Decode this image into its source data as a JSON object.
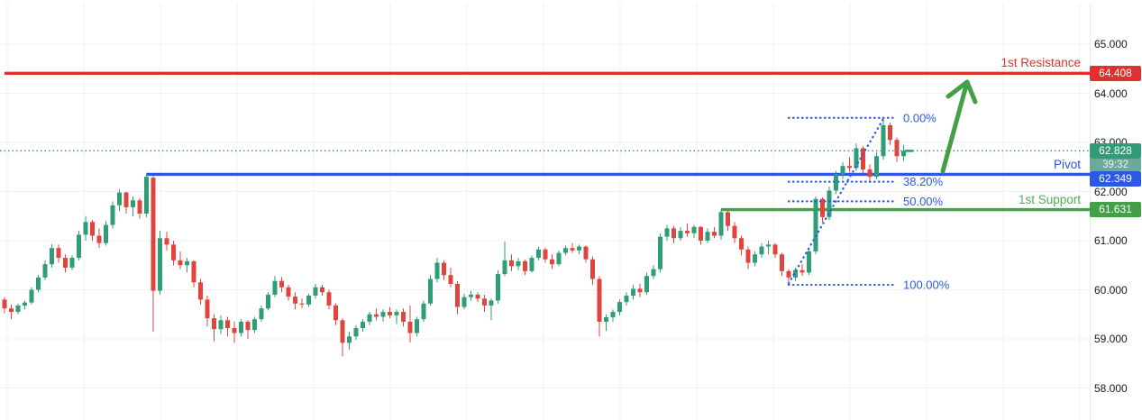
{
  "chart_data": {
    "type": "candlestick",
    "y_axis": {
      "min": 58,
      "max": 65,
      "tick_step": 1,
      "tick_labels": [
        "65.000",
        "64.000",
        "63.000",
        "62.000",
        "61.000",
        "60.000",
        "59.000",
        "58.000"
      ],
      "grid": true
    },
    "levels": [
      {
        "name": "1st Resistance",
        "price": 64.408,
        "value_label": "64.408",
        "color": "#e0312e",
        "start_index": 0
      },
      {
        "name": "Pivot",
        "price": 62.349,
        "value_label": "62.349",
        "color": "#2c59e4",
        "start_index": 21
      },
      {
        "name": "1st Support",
        "price": 61.631,
        "value_label": "61.631",
        "color": "#43a047",
        "start_index": 106
      }
    ],
    "current_price": {
      "value": "62.828",
      "price": 62.828,
      "countdown": "39:32",
      "color": "#2f9e77"
    },
    "fib_retracement": {
      "color": "#2c59e4",
      "levels": [
        {
          "label": "0.00%",
          "price": 63.5
        },
        {
          "label": "38.20%",
          "price": 62.2
        },
        {
          "label": "50.00%",
          "price": 61.8
        },
        {
          "label": "100.00%",
          "price": 60.1
        }
      ],
      "anchor_low": {
        "index": 116,
        "price": 60.13
      },
      "anchor_high": {
        "index": 130,
        "price": 63.48
      }
    },
    "arrow_annotation": {
      "tail": [
        1046,
        190
      ],
      "tip": [
        1073,
        91
      ],
      "color": "#43a047"
    },
    "candles": [
      [
        59.8,
        59.85,
        59.52,
        59.62
      ],
      [
        59.62,
        59.7,
        59.4,
        59.55
      ],
      [
        59.55,
        59.72,
        59.5,
        59.68
      ],
      [
        59.68,
        59.78,
        59.6,
        59.74
      ],
      [
        59.74,
        60.05,
        59.7,
        60.0
      ],
      [
        60.0,
        60.3,
        59.95,
        60.25
      ],
      [
        60.25,
        60.6,
        60.2,
        60.52
      ],
      [
        60.52,
        60.93,
        60.45,
        60.85
      ],
      [
        60.85,
        60.92,
        60.55,
        60.65
      ],
      [
        60.65,
        60.72,
        60.35,
        60.45
      ],
      [
        60.45,
        60.7,
        60.4,
        60.65
      ],
      [
        60.65,
        61.2,
        60.6,
        61.12
      ],
      [
        61.12,
        61.5,
        61.0,
        61.38
      ],
      [
        61.38,
        61.42,
        61.0,
        61.1
      ],
      [
        61.1,
        61.25,
        60.85,
        60.95
      ],
      [
        60.95,
        61.4,
        60.9,
        61.32
      ],
      [
        61.32,
        61.8,
        61.25,
        61.72
      ],
      [
        61.72,
        62.05,
        61.6,
        61.98
      ],
      [
        61.98,
        62.0,
        61.55,
        61.68
      ],
      [
        61.68,
        61.9,
        61.5,
        61.82
      ],
      [
        61.82,
        61.87,
        61.45,
        61.55
      ],
      [
        61.55,
        62.36,
        61.48,
        62.3
      ],
      [
        62.28,
        62.33,
        59.15,
        59.98
      ],
      [
        59.98,
        61.2,
        59.9,
        61.05
      ],
      [
        61.05,
        61.18,
        60.8,
        60.92
      ],
      [
        60.92,
        61.0,
        60.5,
        60.6
      ],
      [
        60.6,
        60.78,
        60.42,
        60.5
      ],
      [
        60.5,
        60.65,
        60.35,
        60.58
      ],
      [
        60.58,
        60.6,
        60.05,
        60.15
      ],
      [
        60.15,
        60.22,
        59.7,
        59.8
      ],
      [
        59.8,
        59.88,
        59.25,
        59.42
      ],
      [
        59.42,
        59.5,
        58.95,
        59.2
      ],
      [
        59.2,
        59.48,
        59.1,
        59.38
      ],
      [
        59.38,
        59.45,
        59.05,
        59.22
      ],
      [
        59.22,
        59.35,
        58.92,
        59.12
      ],
      [
        59.12,
        59.4,
        59.05,
        59.35
      ],
      [
        59.35,
        59.38,
        59.0,
        59.18
      ],
      [
        59.18,
        59.45,
        59.12,
        59.4
      ],
      [
        59.4,
        59.68,
        59.35,
        59.62
      ],
      [
        59.62,
        59.95,
        59.58,
        59.9
      ],
      [
        59.9,
        60.28,
        59.85,
        60.18
      ],
      [
        60.18,
        60.26,
        59.95,
        60.05
      ],
      [
        60.05,
        60.1,
        59.78,
        59.86
      ],
      [
        59.86,
        59.95,
        59.6,
        59.72
      ],
      [
        59.72,
        59.82,
        59.62,
        59.7
      ],
      [
        59.7,
        59.92,
        59.65,
        59.88
      ],
      [
        59.88,
        60.12,
        59.82,
        60.05
      ],
      [
        60.05,
        60.1,
        59.88,
        59.95
      ],
      [
        59.95,
        60.0,
        59.6,
        59.68
      ],
      [
        59.68,
        59.72,
        59.28,
        59.38
      ],
      [
        59.38,
        59.42,
        58.65,
        58.92
      ],
      [
        58.92,
        59.15,
        58.78,
        59.05
      ],
      [
        59.05,
        59.28,
        58.98,
        59.22
      ],
      [
        59.22,
        59.4,
        59.15,
        59.35
      ],
      [
        59.35,
        59.55,
        59.28,
        59.5
      ],
      [
        59.5,
        59.62,
        59.38,
        59.45
      ],
      [
        59.45,
        59.6,
        59.35,
        59.55
      ],
      [
        59.55,
        59.65,
        59.42,
        59.48
      ],
      [
        59.48,
        59.6,
        59.3,
        59.55
      ],
      [
        59.55,
        59.62,
        59.25,
        59.35
      ],
      [
        59.35,
        59.68,
        58.93,
        59.12
      ],
      [
        59.12,
        59.45,
        59.05,
        59.4
      ],
      [
        59.4,
        59.78,
        59.35,
        59.72
      ],
      [
        59.72,
        60.3,
        59.68,
        60.22
      ],
      [
        60.22,
        60.65,
        60.15,
        60.55
      ],
      [
        60.55,
        60.6,
        60.2,
        60.3
      ],
      [
        60.3,
        60.45,
        60.05,
        60.12
      ],
      [
        60.12,
        60.18,
        59.5,
        59.65
      ],
      [
        59.65,
        59.92,
        59.6,
        59.85
      ],
      [
        59.85,
        59.98,
        59.78,
        59.9
      ],
      [
        59.9,
        59.95,
        59.75,
        59.82
      ],
      [
        59.82,
        59.9,
        59.55,
        59.68
      ],
      [
        59.68,
        59.82,
        59.38,
        59.78
      ],
      [
        59.78,
        60.4,
        59.72,
        60.32
      ],
      [
        60.32,
        60.98,
        60.28,
        60.6
      ],
      [
        60.6,
        60.72,
        60.38,
        60.48
      ],
      [
        60.48,
        60.65,
        60.4,
        60.58
      ],
      [
        60.58,
        60.62,
        60.3,
        60.38
      ],
      [
        60.38,
        60.7,
        60.35,
        60.65
      ],
      [
        60.65,
        60.88,
        60.6,
        60.82
      ],
      [
        60.82,
        60.86,
        60.55,
        60.62
      ],
      [
        60.62,
        60.72,
        60.42,
        60.52
      ],
      [
        60.52,
        60.8,
        60.48,
        60.75
      ],
      [
        60.75,
        60.9,
        60.7,
        60.85
      ],
      [
        60.85,
        60.95,
        60.75,
        60.8
      ],
      [
        60.8,
        60.92,
        60.72,
        60.88
      ],
      [
        60.88,
        60.9,
        60.55,
        60.62
      ],
      [
        60.62,
        60.68,
        60.1,
        60.22
      ],
      [
        60.22,
        60.28,
        59.05,
        59.35
      ],
      [
        59.35,
        59.5,
        59.16,
        59.44
      ],
      [
        59.44,
        59.6,
        59.35,
        59.55
      ],
      [
        59.55,
        59.8,
        59.48,
        59.75
      ],
      [
        59.75,
        59.95,
        59.68,
        59.88
      ],
      [
        59.88,
        60.1,
        59.8,
        60.02
      ],
      [
        60.02,
        60.12,
        59.85,
        59.95
      ],
      [
        59.95,
        60.35,
        59.9,
        60.28
      ],
      [
        60.28,
        60.5,
        60.22,
        60.42
      ],
      [
        60.42,
        61.15,
        60.35,
        61.08
      ],
      [
        61.08,
        61.32,
        61.0,
        61.25
      ],
      [
        61.25,
        61.3,
        60.95,
        61.05
      ],
      [
        61.05,
        61.28,
        61.0,
        61.2
      ],
      [
        61.2,
        61.35,
        61.08,
        61.15
      ],
      [
        61.15,
        61.32,
        61.05,
        61.28
      ],
      [
        61.28,
        61.3,
        60.92,
        61.0
      ],
      [
        61.0,
        61.25,
        60.95,
        61.18
      ],
      [
        61.18,
        61.28,
        61.05,
        61.1
      ],
      [
        61.1,
        61.63,
        61.02,
        61.58
      ],
      [
        61.58,
        61.6,
        61.2,
        61.3
      ],
      [
        61.3,
        61.38,
        60.95,
        61.05
      ],
      [
        61.05,
        61.1,
        60.7,
        60.82
      ],
      [
        60.82,
        60.88,
        60.42,
        60.55
      ],
      [
        60.55,
        60.78,
        60.48,
        60.72
      ],
      [
        60.72,
        60.95,
        60.65,
        60.88
      ],
      [
        60.88,
        61.0,
        60.72,
        60.92
      ],
      [
        60.92,
        60.95,
        60.65,
        60.72
      ],
      [
        60.72,
        60.75,
        60.28,
        60.38
      ],
      [
        60.38,
        60.42,
        60.13,
        60.25
      ],
      [
        60.25,
        60.45,
        60.18,
        60.4
      ],
      [
        60.4,
        60.52,
        60.28,
        60.35
      ],
      [
        60.35,
        60.85,
        60.3,
        60.78
      ],
      [
        60.78,
        61.9,
        60.72,
        61.85
      ],
      [
        61.85,
        61.88,
        61.38,
        61.48
      ],
      [
        61.48,
        62.1,
        61.42,
        62.02
      ],
      [
        62.02,
        62.42,
        61.95,
        62.35
      ],
      [
        62.35,
        62.6,
        62.25,
        62.52
      ],
      [
        62.52,
        62.7,
        62.4,
        62.48
      ],
      [
        62.48,
        62.98,
        62.42,
        62.88
      ],
      [
        62.88,
        62.92,
        62.35,
        62.45
      ],
      [
        62.45,
        62.55,
        62.18,
        62.3
      ],
      [
        62.3,
        62.8,
        62.25,
        62.72
      ],
      [
        62.72,
        63.48,
        62.65,
        63.35
      ],
      [
        63.35,
        63.4,
        62.95,
        63.05
      ],
      [
        63.05,
        63.1,
        62.6,
        62.72
      ],
      [
        62.72,
        62.95,
        62.62,
        62.828
      ]
    ]
  },
  "colors": {
    "up": "#2f9e77",
    "down": "#e0443c",
    "grid": "#f0f2f6",
    "axis_text": "#16181d",
    "fib_blue": "#2c59e4",
    "countdown_bg": "#6ba99a"
  }
}
